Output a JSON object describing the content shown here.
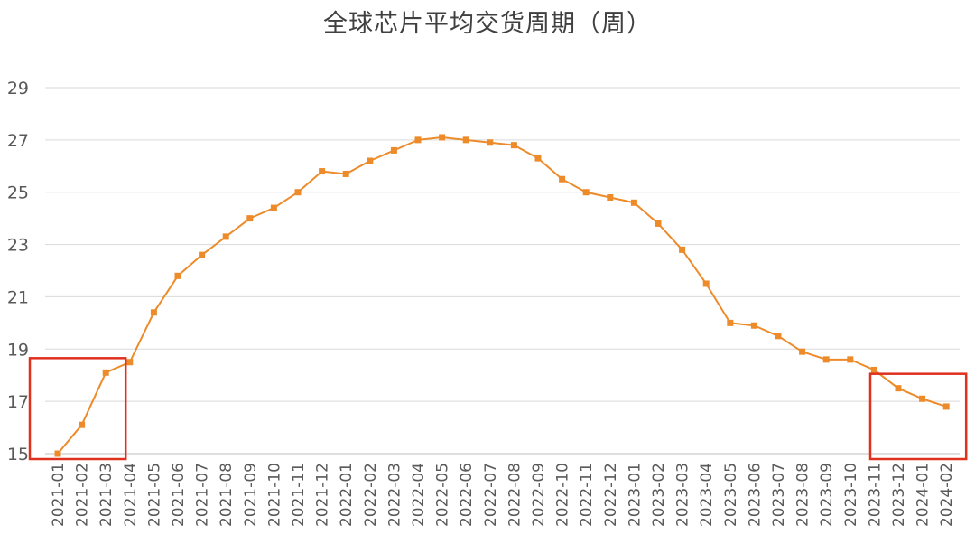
{
  "chart_data": {
    "type": "line",
    "title": "全球芯片平均交货周期（周）",
    "xlabel": "",
    "ylabel": "",
    "ylim": [
      15,
      29
    ],
    "yticks": [
      15,
      17,
      19,
      21,
      23,
      25,
      27,
      29
    ],
    "grid": true,
    "legend": "none",
    "line_color": "#ED8B2B",
    "highlight_color": "#E0301E",
    "categories": [
      "2021-01",
      "2021-02",
      "2021-03",
      "2021-04",
      "2021-05",
      "2021-06",
      "2021-07",
      "2021-08",
      "2021-09",
      "2021-10",
      "2021-11",
      "2021-12",
      "2022-01",
      "2022-02",
      "2022-03",
      "2022-04",
      "2022-05",
      "2022-06",
      "2022-07",
      "2022-08",
      "2022-09",
      "2022-10",
      "2022-11",
      "2022-12",
      "2023-01",
      "2023-02",
      "2023-03",
      "2023-04",
      "2023-05",
      "2023-06",
      "2023-07",
      "2023-08",
      "2023-09",
      "2023-10",
      "2023-11",
      "2023-12",
      "2024-01",
      "2024-02"
    ],
    "values": [
      15.0,
      16.1,
      18.1,
      18.5,
      20.4,
      21.8,
      22.6,
      23.3,
      24.0,
      24.4,
      25.0,
      25.8,
      25.7,
      26.2,
      26.6,
      27.0,
      27.1,
      27.0,
      26.9,
      26.8,
      26.3,
      25.5,
      25.0,
      24.8,
      24.6,
      23.8,
      22.8,
      21.5,
      20.0,
      19.9,
      19.5,
      18.9,
      18.6,
      18.6,
      18.2,
      17.5,
      17.1,
      16.8
    ],
    "highlights": [
      {
        "from": "2021-01",
        "to": "2021-03"
      },
      {
        "from": "2023-12",
        "to": "2024-02"
      }
    ]
  }
}
